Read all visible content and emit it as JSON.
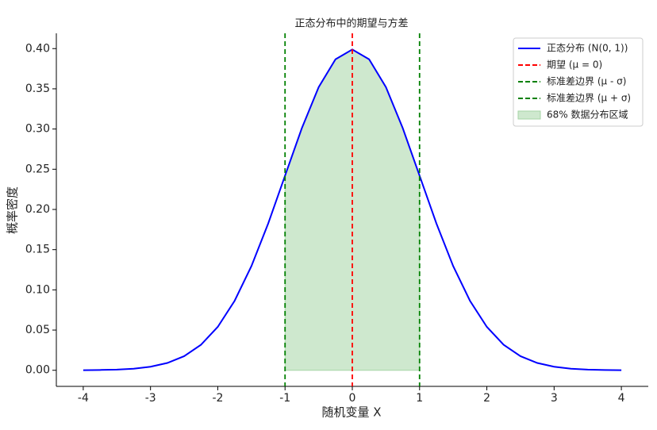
{
  "chart_data": {
    "type": "line",
    "title": "正态分布中的期望与方差",
    "xlabel": "随机变量 X",
    "ylabel": "概率密度",
    "xlim": [
      -4.4,
      4.4
    ],
    "ylim": [
      -0.02,
      0.419
    ],
    "xticks": [
      -4,
      -3,
      -2,
      -1,
      0,
      1,
      2,
      3,
      4
    ],
    "yticks": [
      {
        "value": 0,
        "label": "0.00"
      },
      {
        "value": 0.05,
        "label": "0.05"
      },
      {
        "value": 0.1,
        "label": "0.10"
      },
      {
        "value": 0.15,
        "label": "0.15"
      },
      {
        "value": 0.2,
        "label": "0.20"
      },
      {
        "value": 0.25,
        "label": "0.25"
      },
      {
        "value": 0.3,
        "label": "0.30"
      },
      {
        "value": 0.35,
        "label": "0.35"
      },
      {
        "value": 0.4,
        "label": "0.40"
      }
    ],
    "legend": "upper right",
    "series": [
      {
        "name": "正态分布 (N(0, 1))",
        "kind": "line",
        "color": "#0000ff",
        "x": [
          -4,
          -3.75,
          -3.5,
          -3.25,
          -3,
          -2.75,
          -2.5,
          -2.25,
          -2,
          -1.75,
          -1.5,
          -1.25,
          -1,
          -0.75,
          -0.5,
          -0.25,
          0,
          0.25,
          0.5,
          0.75,
          1,
          1.25,
          1.5,
          1.75,
          2,
          2.25,
          2.5,
          2.75,
          3,
          3.25,
          3.5,
          3.75,
          4
        ],
        "values": [
          0.0001,
          0.0004,
          0.0009,
          0.002,
          0.0044,
          0.0091,
          0.0175,
          0.0317,
          0.054,
          0.0863,
          0.1295,
          0.1826,
          0.242,
          0.3011,
          0.3521,
          0.3867,
          0.3989,
          0.3867,
          0.3521,
          0.3011,
          0.242,
          0.1826,
          0.1295,
          0.0863,
          0.054,
          0.0317,
          0.0175,
          0.0091,
          0.0044,
          0.002,
          0.0009,
          0.0004,
          0.0001
        ]
      },
      {
        "name": "期望 (μ = 0)",
        "kind": "vline",
        "color": "#ff0000",
        "x": 0
      },
      {
        "name": "标准差边界 (μ - σ)",
        "kind": "vline",
        "color": "#008000",
        "x": -1
      },
      {
        "name": "标准差边界 (μ + σ)",
        "kind": "vline",
        "color": "#008000",
        "x": 1
      },
      {
        "name": "68% 数据分布区域",
        "kind": "area",
        "color": "#a6d5a6",
        "x": [
          -1,
          -0.75,
          -0.5,
          -0.25,
          0,
          0.25,
          0.5,
          0.75,
          1
        ],
        "values": [
          0.242,
          0.3011,
          0.3521,
          0.3867,
          0.3989,
          0.3867,
          0.3521,
          0.3011,
          0.242
        ]
      }
    ]
  }
}
